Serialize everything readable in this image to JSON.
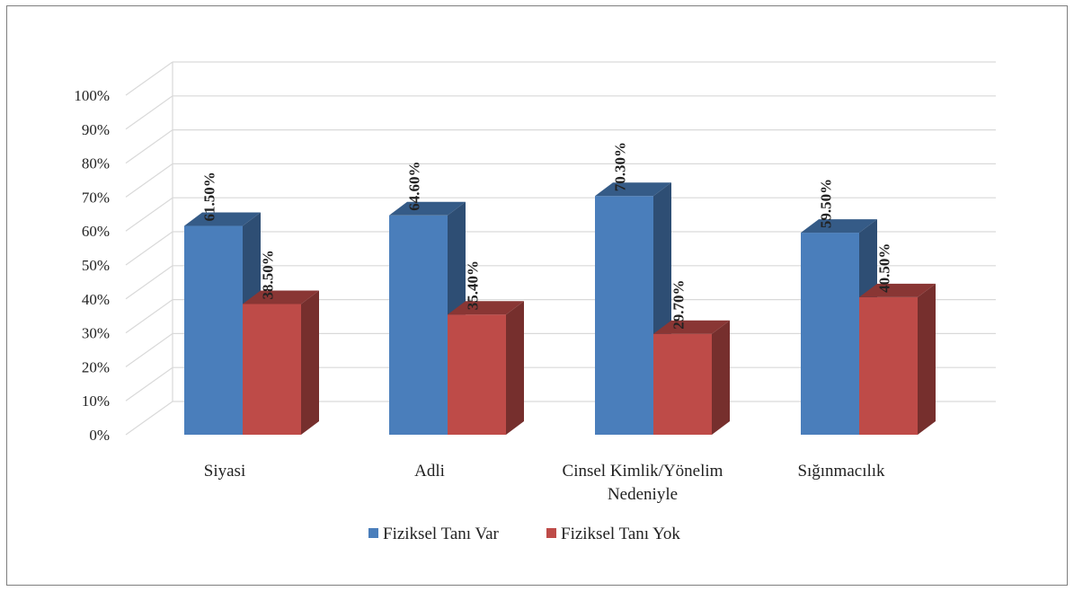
{
  "chart_data": {
    "type": "bar",
    "categories": [
      "Siyasi",
      "Adli",
      "Cinsel Kimlik/Yönelim Nedeniyle",
      "Sığınmacılık"
    ],
    "category_lines": [
      [
        "Siyasi"
      ],
      [
        "Adli"
      ],
      [
        "Cinsel Kimlik/Yönelim",
        "Nedeniyle"
      ],
      [
        "Sığınmacılık"
      ]
    ],
    "series": [
      {
        "name": "Fiziksel Tanı Var",
        "values": [
          61.5,
          64.6,
          70.3,
          59.5
        ],
        "labels": [
          "61.50%",
          "64.60%",
          "70.30%",
          "59.50%"
        ],
        "color": "#4a7ebb"
      },
      {
        "name": "Fiziksel Tanı Yok",
        "values": [
          38.5,
          35.4,
          29.7,
          40.5
        ],
        "labels": [
          "38.50%",
          "35.40%",
          "29.70%",
          "40.50%"
        ],
        "color": "#be4b48"
      }
    ],
    "y_ticks": [
      "0%",
      "10%",
      "20%",
      "30%",
      "40%",
      "50%",
      "60%",
      "70%",
      "80%",
      "90%",
      "100%"
    ],
    "ylim": [
      0,
      100
    ],
    "grid": true,
    "legend_position": "bottom",
    "style": "3d-clustered-column"
  }
}
